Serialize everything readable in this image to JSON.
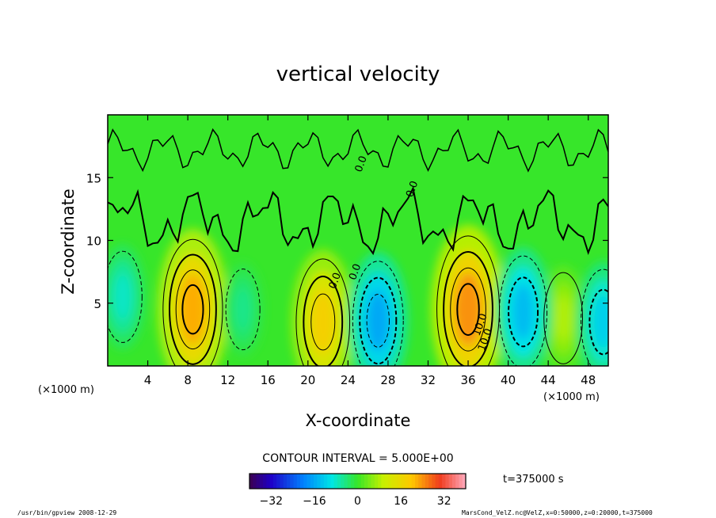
{
  "chart_data": {
    "type": "heatmap",
    "title": "vertical velocity",
    "xlabel": "X-coordinate",
    "ylabel": "Z-coordinate",
    "x_unit_left": "(×1000 m)",
    "x_unit_right": "(×1000 m)",
    "xlim": [
      0,
      50
    ],
    "ylim": [
      0,
      20
    ],
    "xticks": [
      4,
      8,
      12,
      16,
      20,
      24,
      28,
      32,
      36,
      40,
      44,
      48
    ],
    "yticks": [
      5,
      10,
      15
    ],
    "contour_interval_text": "CONTOUR INTERVAL = 5.000E+00",
    "contour_labels": [
      {
        "text": "0.0",
        "x": 23.0,
        "z": 6.7
      },
      {
        "text": "0.0",
        "x": 25.0,
        "z": 7.4
      },
      {
        "text": "0.0",
        "x": 25.6,
        "z": 16.0
      },
      {
        "text": "0.0",
        "x": 30.7,
        "z": 14.0
      },
      {
        "text": "10.0",
        "x": 37.5,
        "z": 3.2
      },
      {
        "text": "10.0",
        "x": 38.0,
        "z": 2.0
      }
    ],
    "features": [
      {
        "sign": "positive",
        "x": 8.5,
        "z": 4.5,
        "peak": 22
      },
      {
        "sign": "positive",
        "x": 21.5,
        "z": 3.5,
        "peak": 18
      },
      {
        "sign": "positive",
        "x": 36.0,
        "z": 4.5,
        "peak": 24
      },
      {
        "sign": "positive",
        "x": 45.5,
        "z": 3.8,
        "peak": 8
      },
      {
        "sign": "negative",
        "x": 1.5,
        "z": 5.5,
        "peak": -8
      },
      {
        "sign": "negative",
        "x": 13.5,
        "z": 4.5,
        "peak": -5
      },
      {
        "sign": "negative",
        "x": 27.0,
        "z": 3.6,
        "peak": -16
      },
      {
        "sign": "negative",
        "x": 41.5,
        "z": 4.3,
        "peak": -14
      },
      {
        "sign": "negative",
        "x": 49.5,
        "z": 3.5,
        "peak": -12
      }
    ],
    "colorbar": {
      "ticks": [
        -32,
        -16,
        0,
        16,
        32
      ],
      "range": [
        -40,
        40
      ],
      "time_label": "t=375000  s"
    },
    "colors": {
      "background_field": "#37e62a",
      "strong_negative": "#1aa0ff",
      "strong_positive": "#f2f000"
    }
  },
  "footer": {
    "left": "/usr/bin/gpview   2008-12-29",
    "right": "MarsCond_VelZ.nc@VelZ,x=0:50000,z=0:20000,t=375000"
  }
}
